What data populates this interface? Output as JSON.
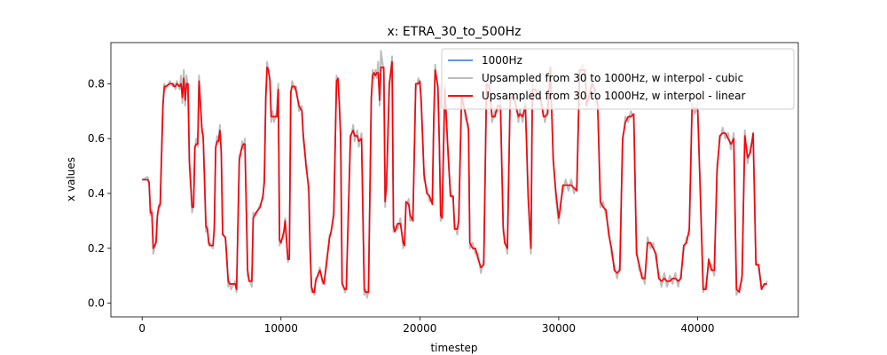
{
  "chart_data": {
    "type": "line",
    "title": "x: ETRA_30_to_500Hz",
    "xlabel": "timestep",
    "ylabel": "x values",
    "xlim": [
      -2250,
      47250
    ],
    "ylim": [
      -0.05,
      0.95
    ],
    "xticks": [
      0,
      10000,
      20000,
      30000,
      40000
    ],
    "xtick_labels": [
      "0",
      "10000",
      "20000",
      "30000",
      "40000"
    ],
    "yticks": [
      0.0,
      0.2,
      0.4,
      0.6,
      0.8
    ],
    "ytick_labels": [
      "0.0",
      "0.2",
      "0.4",
      "0.6",
      "0.8"
    ],
    "grid": false,
    "legend_position": "top-right",
    "legend": [
      "1000Hz",
      "Upsampled from 30 to 1000Hz, w interpol - cubic",
      "Upsampled from 30 to 1000Hz, w interpol - linear"
    ],
    "colors": {
      "1000hz": "#6495ed",
      "cubic": "#bdbdbd",
      "linear": "#ff0000"
    },
    "series": [
      {
        "name": "1000Hz",
        "style": "line"
      },
      {
        "name": "Upsampled from 30 to 1000Hz, w interpol - cubic",
        "style": "line"
      },
      {
        "name": "Upsampled from 30 to 1000Hz, w interpol - linear",
        "style": "line"
      }
    ],
    "x": [
      0,
      400,
      500,
      600,
      700,
      800,
      1000,
      1100,
      1200,
      1300,
      1500,
      1600,
      1700,
      2000,
      2200,
      2300,
      2400,
      2500,
      2700,
      2800,
      2900,
      3000,
      3100,
      3200,
      3300,
      3400,
      3600,
      3700,
      3800,
      3900,
      4000,
      4100,
      4300,
      4400,
      4600,
      4700,
      4800,
      4900,
      5100,
      5200,
      5300,
      5400,
      5500,
      5600,
      5700,
      5800,
      6000,
      6100,
      6200,
      6300,
      6400,
      6700,
      6800,
      7000,
      7100,
      7200,
      7300,
      7400,
      7600,
      7700,
      7900,
      8000,
      8200,
      8500,
      8700,
      8800,
      8900,
      9000,
      9100,
      9200,
      9300,
      9400,
      9500,
      9700,
      9800,
      9900,
      10000,
      10200,
      10300,
      10500,
      10600,
      10700,
      10800,
      11000,
      11100,
      11300,
      11500,
      11600,
      11800,
      12000,
      12100,
      12200,
      12300,
      12400,
      12500,
      12700,
      12800,
      13000,
      13100,
      13300,
      13500,
      13600,
      13800,
      14000,
      14100,
      14200,
      14300,
      14400,
      14600,
      14700,
      15000,
      15200,
      15300,
      15500,
      15600,
      15800,
      16000,
      16100,
      16200,
      16300,
      16500,
      16600,
      16700,
      16800,
      16900,
      17000,
      17100,
      17200,
      17400,
      17500,
      17600,
      17800,
      18000,
      18100,
      18200,
      18400,
      18600,
      18800,
      18900,
      19000,
      19200,
      19300,
      19500,
      19700,
      19900,
      20000,
      20100,
      20300,
      20500,
      20700,
      20900,
      21000,
      21100,
      21300,
      21400,
      21500,
      21600,
      21800,
      22000,
      22200,
      22400,
      22500,
      22700,
      22800,
      23000,
      23100,
      23300,
      23500,
      23600,
      23800,
      24000,
      24200,
      24400,
      24600,
      24800,
      25000,
      25200,
      25400,
      25600,
      25800,
      26000,
      26100,
      26300,
      26500,
      26700,
      26900,
      27100,
      27200,
      27400,
      27600,
      27800,
      28000,
      28100,
      28300,
      28500,
      28700,
      28900,
      29000,
      29200,
      29400,
      29600,
      29800,
      30000,
      30100,
      30300,
      30500,
      30700,
      30900,
      31100,
      31300,
      31500,
      31700,
      31900,
      32000,
      32200,
      32400,
      32600,
      32800,
      33000,
      33200,
      33400,
      33600,
      33800,
      34000,
      34200,
      34400,
      34600,
      34800,
      35000,
      35200,
      35400,
      35600,
      35800,
      36000,
      36200,
      36400,
      36600,
      36800,
      37000,
      37200,
      37400,
      37600,
      37800,
      38000,
      38200,
      38400,
      38600,
      38800,
      39000,
      39200,
      39400,
      39600,
      39800,
      40000,
      40200,
      40400,
      40600,
      40800,
      41000,
      41200,
      41400,
      41600,
      41800,
      42000,
      42200,
      42400,
      42600,
      42800,
      43000,
      43200,
      43400,
      43600,
      43800,
      44000,
      44200,
      44400,
      44600,
      44800,
      45000
    ],
    "linear_y": [
      0.45,
      0.45,
      0.44,
      0.33,
      0.33,
      0.2,
      0.22,
      0.32,
      0.35,
      0.36,
      0.72,
      0.79,
      0.79,
      0.8,
      0.8,
      0.79,
      0.79,
      0.8,
      0.79,
      0.8,
      0.75,
      0.82,
      0.74,
      0.8,
      0.8,
      0.52,
      0.35,
      0.35,
      0.57,
      0.58,
      0.58,
      0.81,
      0.64,
      0.6,
      0.28,
      0.27,
      0.22,
      0.21,
      0.21,
      0.27,
      0.57,
      0.59,
      0.59,
      0.63,
      0.55,
      0.25,
      0.24,
      0.16,
      0.08,
      0.07,
      0.07,
      0.07,
      0.05,
      0.52,
      0.55,
      0.57,
      0.58,
      0.58,
      0.12,
      0.08,
      0.08,
      0.31,
      0.33,
      0.35,
      0.39,
      0.44,
      0.75,
      0.86,
      0.85,
      0.81,
      0.68,
      0.68,
      0.68,
      0.68,
      0.78,
      0.23,
      0.22,
      0.26,
      0.3,
      0.16,
      0.16,
      0.77,
      0.79,
      0.79,
      0.77,
      0.72,
      0.7,
      0.62,
      0.5,
      0.42,
      0.19,
      0.06,
      0.04,
      0.04,
      0.08,
      0.11,
      0.12,
      0.08,
      0.07,
      0.16,
      0.24,
      0.26,
      0.32,
      0.81,
      0.82,
      0.72,
      0.6,
      0.07,
      0.05,
      0.05,
      0.61,
      0.63,
      0.61,
      0.61,
      0.59,
      0.6,
      0.05,
      0.04,
      0.04,
      0.04,
      0.75,
      0.83,
      0.84,
      0.83,
      0.84,
      0.84,
      0.74,
      0.86,
      0.86,
      0.37,
      0.43,
      0.8,
      0.88,
      0.28,
      0.26,
      0.29,
      0.29,
      0.22,
      0.21,
      0.37,
      0.36,
      0.32,
      0.3,
      0.8,
      0.8,
      0.81,
      0.73,
      0.47,
      0.4,
      0.39,
      0.36,
      0.67,
      0.85,
      0.79,
      0.58,
      0.32,
      0.31,
      0.78,
      0.58,
      0.39,
      0.39,
      0.27,
      0.27,
      0.3,
      0.75,
      0.73,
      0.69,
      0.63,
      0.22,
      0.2,
      0.2,
      0.16,
      0.13,
      0.14,
      0.8,
      0.79,
      0.68,
      0.68,
      0.72,
      0.72,
      0.28,
      0.22,
      0.2,
      0.74,
      0.76,
      0.72,
      0.68,
      0.69,
      0.68,
      0.72,
      0.39,
      0.2,
      0.78,
      0.78,
      0.76,
      0.75,
      0.68,
      0.68,
      0.69,
      0.86,
      0.52,
      0.4,
      0.31,
      0.34,
      0.43,
      0.43,
      0.43,
      0.43,
      0.42,
      0.41,
      0.85,
      0.85,
      0.85,
      0.72,
      0.76,
      0.8,
      0.78,
      0.72,
      0.37,
      0.35,
      0.34,
      0.25,
      0.2,
      0.12,
      0.11,
      0.12,
      0.6,
      0.66,
      0.68,
      0.68,
      0.69,
      0.18,
      0.14,
      0.09,
      0.09,
      0.22,
      0.22,
      0.2,
      0.18,
      0.09,
      0.08,
      0.09,
      0.08,
      0.08,
      0.09,
      0.09,
      0.08,
      0.09,
      0.21,
      0.22,
      0.27,
      0.71,
      0.71,
      0.71,
      0.4,
      0.05,
      0.05,
      0.16,
      0.12,
      0.12,
      0.48,
      0.61,
      0.62,
      0.62,
      0.6,
      0.58,
      0.6,
      0.05,
      0.04,
      0.1,
      0.61,
      0.53,
      0.55,
      0.62,
      0.14,
      0.14,
      0.05,
      0.07,
      0.07,
      0.07
    ],
    "hz1000_y": [
      0.45,
      0.45,
      0.44,
      0.33,
      0.33,
      0.2,
      0.22,
      0.32,
      0.35,
      0.36,
      0.72,
      0.79,
      0.79,
      0.8,
      0.8,
      0.79,
      0.79,
      0.8,
      0.79,
      0.8,
      0.75,
      0.82,
      0.74,
      0.8,
      0.8,
      0.52,
      0.35,
      0.35,
      0.57,
      0.58,
      0.58,
      0.81,
      0.64,
      0.6,
      0.28,
      0.27,
      0.22,
      0.21,
      0.21,
      0.27,
      0.57,
      0.59,
      0.59,
      0.63,
      0.55,
      0.25,
      0.24,
      0.16,
      0.08,
      0.07,
      0.07,
      0.07,
      0.05,
      0.52,
      0.55,
      0.57,
      0.58,
      0.58,
      0.12,
      0.08,
      0.08,
      0.31,
      0.33,
      0.35,
      0.39,
      0.44,
      0.75,
      0.86,
      0.85,
      0.81,
      0.68,
      0.68,
      0.68,
      0.68,
      0.78,
      0.23,
      0.22,
      0.26,
      0.3,
      0.16,
      0.16,
      0.77,
      0.79,
      0.79,
      0.77,
      0.72,
      0.7,
      0.62,
      0.5,
      0.42,
      0.19,
      0.06,
      0.04,
      0.04,
      0.08,
      0.11,
      0.12,
      0.08,
      0.07,
      0.16,
      0.24,
      0.26,
      0.32,
      0.81,
      0.82,
      0.72,
      0.6,
      0.07,
      0.05,
      0.05,
      0.61,
      0.63,
      0.61,
      0.61,
      0.59,
      0.6,
      0.05,
      0.04,
      0.04,
      0.04,
      0.75,
      0.83,
      0.84,
      0.83,
      0.84,
      0.84,
      0.74,
      0.86,
      0.86,
      0.37,
      0.43,
      0.8,
      0.88,
      0.28,
      0.26,
      0.29,
      0.29,
      0.22,
      0.21,
      0.37,
      0.36,
      0.32,
      0.3,
      0.8,
      0.8,
      0.81,
      0.73,
      0.47,
      0.4,
      0.39,
      0.36,
      0.67,
      0.85,
      0.79,
      0.58,
      0.32,
      0.31,
      0.78,
      0.58,
      0.39,
      0.39,
      0.27,
      0.27,
      0.3,
      0.75,
      0.73,
      0.69,
      0.63,
      0.22,
      0.2,
      0.2,
      0.16,
      0.13,
      0.14,
      0.8,
      0.79,
      0.68,
      0.68,
      0.72,
      0.72,
      0.28,
      0.22,
      0.2,
      0.74,
      0.76,
      0.72,
      0.68,
      0.69,
      0.68,
      0.72,
      0.39,
      0.2,
      0.78,
      0.78,
      0.76,
      0.75,
      0.68,
      0.68,
      0.69,
      0.86,
      0.52,
      0.4,
      0.31,
      0.34,
      0.43,
      0.43,
      0.43,
      0.43,
      0.42,
      0.41,
      0.85,
      0.85,
      0.85,
      0.72,
      0.76,
      0.8,
      0.78,
      0.72,
      0.37,
      0.35,
      0.34,
      0.25,
      0.2,
      0.12,
      0.11,
      0.12,
      0.6,
      0.66,
      0.68,
      0.68,
      0.69,
      0.18,
      0.14,
      0.09,
      0.09,
      0.22,
      0.22,
      0.2,
      0.18,
      0.09,
      0.08,
      0.09,
      0.08,
      0.08,
      0.09,
      0.09,
      0.08,
      0.09,
      0.21,
      0.22,
      0.27,
      0.71,
      0.71,
      0.71,
      0.4,
      0.05,
      0.05,
      0.16,
      0.12,
      0.12,
      0.48,
      0.61,
      0.62,
      0.62,
      0.6,
      0.58,
      0.6,
      0.05,
      0.04,
      0.1,
      0.61,
      0.53,
      0.55,
      0.62,
      0.14,
      0.14,
      0.05,
      0.07,
      0.07,
      0.07
    ],
    "cubic_y": [
      0.45,
      0.46,
      0.43,
      0.32,
      0.34,
      0.18,
      0.23,
      0.31,
      0.36,
      0.35,
      0.73,
      0.8,
      0.78,
      0.81,
      0.79,
      0.8,
      0.78,
      0.81,
      0.78,
      0.83,
      0.73,
      0.85,
      0.72,
      0.83,
      0.78,
      0.5,
      0.33,
      0.36,
      0.56,
      0.6,
      0.57,
      0.83,
      0.62,
      0.62,
      0.26,
      0.28,
      0.21,
      0.22,
      0.2,
      0.29,
      0.56,
      0.61,
      0.58,
      0.65,
      0.53,
      0.26,
      0.23,
      0.17,
      0.06,
      0.08,
      0.05,
      0.08,
      0.04,
      0.54,
      0.54,
      0.59,
      0.56,
      0.6,
      0.1,
      0.09,
      0.06,
      0.33,
      0.32,
      0.36,
      0.38,
      0.46,
      0.73,
      0.88,
      0.84,
      0.82,
      0.66,
      0.7,
      0.66,
      0.7,
      0.8,
      0.21,
      0.23,
      0.24,
      0.31,
      0.15,
      0.17,
      0.75,
      0.81,
      0.78,
      0.79,
      0.7,
      0.72,
      0.6,
      0.52,
      0.4,
      0.2,
      0.04,
      0.05,
      0.03,
      0.09,
      0.1,
      0.13,
      0.07,
      0.08,
      0.14,
      0.25,
      0.25,
      0.34,
      0.83,
      0.8,
      0.74,
      0.58,
      0.08,
      0.04,
      0.06,
      0.59,
      0.65,
      0.59,
      0.63,
      0.57,
      0.62,
      0.03,
      0.05,
      0.02,
      0.05,
      0.73,
      0.85,
      0.82,
      0.85,
      0.82,
      0.88,
      0.72,
      0.92,
      0.84,
      0.35,
      0.45,
      0.78,
      0.9,
      0.26,
      0.28,
      0.27,
      0.31,
      0.2,
      0.23,
      0.35,
      0.38,
      0.3,
      0.32,
      0.78,
      0.82,
      0.79,
      0.75,
      0.45,
      0.42,
      0.37,
      0.38,
      0.65,
      0.87,
      0.77,
      0.6,
      0.3,
      0.33,
      0.8,
      0.56,
      0.41,
      0.37,
      0.29,
      0.25,
      0.32,
      0.73,
      0.75,
      0.67,
      0.65,
      0.2,
      0.22,
      0.18,
      0.18,
      0.11,
      0.16,
      0.78,
      0.81,
      0.66,
      0.7,
      0.7,
      0.74,
      0.26,
      0.24,
      0.18,
      0.76,
      0.74,
      0.74,
      0.66,
      0.71,
      0.66,
      0.74,
      0.37,
      0.18,
      0.8,
      0.76,
      0.78,
      0.73,
      0.7,
      0.66,
      0.71,
      0.84,
      0.54,
      0.38,
      0.29,
      0.36,
      0.41,
      0.45,
      0.41,
      0.45,
      0.4,
      0.43,
      0.83,
      0.87,
      0.83,
      0.74,
      0.74,
      0.82,
      0.76,
      0.74,
      0.35,
      0.37,
      0.32,
      0.27,
      0.18,
      0.14,
      0.09,
      0.14,
      0.58,
      0.68,
      0.66,
      0.7,
      0.67,
      0.2,
      0.12,
      0.11,
      0.07,
      0.24,
      0.2,
      0.22,
      0.16,
      0.11,
      0.06,
      0.11,
      0.06,
      0.1,
      0.07,
      0.11,
      0.06,
      0.11,
      0.19,
      0.24,
      0.25,
      0.73,
      0.69,
      0.73,
      0.38,
      0.04,
      0.07,
      0.14,
      0.14,
      0.1,
      0.5,
      0.59,
      0.64,
      0.6,
      0.62,
      0.56,
      0.62,
      0.03,
      0.06,
      0.08,
      0.63,
      0.51,
      0.57,
      0.6,
      0.16,
      0.12,
      0.06,
      0.06,
      0.08,
      0.06
    ]
  }
}
